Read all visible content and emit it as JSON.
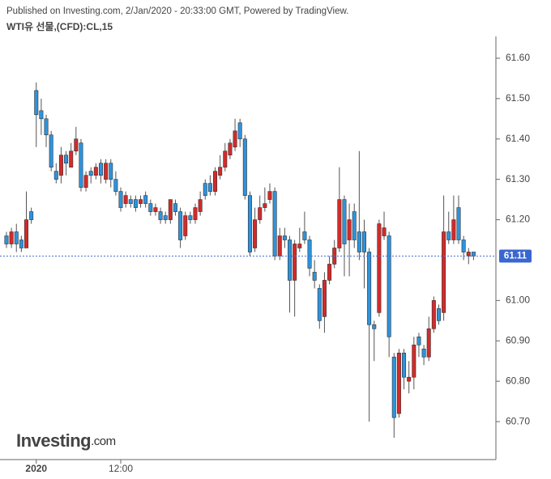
{
  "chart_data": {
    "type": "candlestick",
    "header": "Published on Investing.com, 2/Jan/2020 - 20:33:00 GMT, Powered by TradingView.",
    "title": "WTI유 선물,(CFD):CL,15",
    "logo": {
      "name": "Investing",
      "suffix": ".com"
    },
    "up_color": "#d42a2a",
    "down_color": "#2e93dc",
    "open": [
      61.16,
      61.14,
      61.17,
      61.15,
      61.13,
      61.22,
      61.52,
      61.47,
      61.45,
      61.41,
      61.32,
      61.31,
      61.36,
      61.33,
      61.37,
      61.39,
      61.28,
      61.32,
      61.31,
      61.34,
      61.3,
      61.34,
      61.3,
      61.27,
      61.24,
      61.25,
      61.25,
      61.24,
      61.26,
      61.24,
      61.22,
      61.22,
      61.21,
      61.2,
      61.24,
      61.22,
      61.16,
      61.21,
      61.2,
      61.22,
      61.29,
      61.29,
      61.27,
      61.31,
      61.33,
      61.36,
      61.38,
      61.44,
      61.4,
      61.26,
      61.13,
      61.2,
      61.23,
      61.25,
      61.27,
      61.11,
      61.16,
      61.15,
      61.05,
      61.13,
      61.17,
      61.15,
      61.07,
      61.03,
      60.96,
      61.05,
      61.09,
      61.13,
      61.25,
      61.15,
      61.22,
      61.17,
      61.17,
      61.12,
      60.94,
      60.97,
      61.16,
      61.16,
      60.86,
      60.72,
      60.87,
      60.8,
      60.81,
      60.91,
      60.88,
      60.86,
      60.93,
      60.98,
      60.97,
      61.17,
      61.15,
      61.23,
      61.15,
      61.11,
      61.12
    ],
    "high": [
      61.17,
      61.18,
      61.19,
      61.16,
      61.27,
      61.23,
      61.54,
      61.5,
      61.46,
      61.42,
      61.34,
      61.38,
      61.37,
      61.39,
      61.43,
      61.4,
      61.32,
      61.33,
      61.34,
      61.35,
      61.35,
      61.35,
      61.32,
      61.28,
      61.27,
      61.26,
      61.26,
      61.26,
      61.27,
      61.25,
      61.24,
      61.23,
      61.22,
      61.25,
      61.25,
      61.23,
      61.22,
      61.22,
      61.24,
      61.27,
      61.3,
      61.31,
      61.33,
      61.36,
      61.39,
      61.4,
      61.45,
      61.45,
      61.41,
      61.27,
      61.23,
      61.26,
      61.28,
      61.29,
      61.28,
      61.18,
      61.18,
      61.16,
      61.15,
      61.18,
      61.22,
      61.16,
      61.1,
      61.04,
      61.07,
      61.11,
      61.15,
      61.33,
      61.26,
      61.24,
      61.24,
      61.37,
      61.2,
      61.13,
      60.95,
      61.2,
      61.22,
      61.17,
      60.87,
      60.88,
      60.88,
      60.85,
      60.91,
      60.92,
      60.89,
      60.96,
      61.01,
      60.99,
      61.26,
      61.22,
      61.26,
      61.26,
      61.16,
      61.13,
      61.12
    ],
    "low": [
      61.13,
      61.13,
      61.12,
      61.12,
      61.13,
      61.19,
      61.38,
      61.41,
      61.38,
      61.32,
      61.29,
      61.29,
      61.31,
      61.33,
      61.36,
      61.27,
      61.27,
      61.29,
      61.3,
      61.29,
      61.29,
      61.28,
      61.26,
      61.22,
      61.23,
      61.23,
      61.22,
      61.23,
      61.23,
      61.21,
      61.21,
      61.19,
      61.19,
      61.19,
      61.21,
      61.13,
      61.15,
      61.19,
      61.19,
      61.21,
      61.25,
      61.26,
      61.26,
      61.3,
      61.32,
      61.35,
      61.37,
      61.38,
      61.25,
      61.11,
      61.12,
      61.19,
      61.22,
      61.24,
      61.1,
      61.1,
      61.13,
      60.97,
      60.96,
      61.12,
      61.14,
      61.06,
      61.03,
      60.93,
      60.92,
      61.04,
      61.08,
      61.12,
      61.06,
      61.06,
      61.13,
      61.1,
      61.03,
      60.7,
      60.85,
      60.96,
      61.15,
      60.86,
      60.66,
      60.71,
      60.78,
      60.77,
      60.78,
      60.86,
      60.84,
      60.85,
      60.92,
      60.94,
      60.95,
      61.14,
      61.14,
      61.14,
      61.1,
      61.09,
      61.1
    ],
    "close": [
      61.14,
      61.17,
      61.14,
      61.13,
      61.2,
      61.2,
      61.46,
      61.45,
      61.41,
      61.33,
      61.3,
      61.36,
      61.34,
      61.37,
      61.4,
      61.28,
      61.31,
      61.31,
      61.33,
      61.31,
      61.34,
      61.3,
      61.27,
      61.23,
      61.26,
      61.24,
      61.23,
      61.25,
      61.24,
      61.22,
      61.23,
      61.2,
      61.2,
      61.25,
      61.22,
      61.15,
      61.21,
      61.2,
      61.23,
      61.25,
      61.26,
      61.27,
      61.32,
      61.33,
      61.37,
      61.39,
      61.42,
      61.4,
      61.26,
      61.12,
      61.2,
      61.23,
      61.24,
      61.27,
      61.11,
      61.16,
      61.15,
      61.05,
      61.14,
      61.14,
      61.15,
      61.08,
      61.05,
      60.95,
      61.05,
      61.09,
      61.13,
      61.25,
      61.14,
      61.2,
      61.15,
      61.12,
      61.12,
      60.94,
      60.93,
      61.19,
      61.18,
      60.91,
      60.71,
      60.87,
      60.81,
      60.81,
      60.89,
      60.89,
      60.86,
      60.93,
      61.0,
      60.95,
      61.17,
      61.15,
      61.2,
      61.15,
      61.12,
      61.12,
      61.11
    ],
    "last_price": 61.11,
    "xlim": [
      -1.3,
      98.5
    ],
    "xticks": [
      {
        "value": 6,
        "label": "2020"
      },
      {
        "value": 23,
        "label": "12:00"
      }
    ],
    "ylim": [
      60.606,
      61.654
    ],
    "yticks": [
      {
        "value": 60.7,
        "label": "60.70"
      },
      {
        "value": 60.8,
        "label": "60.80"
      },
      {
        "value": 60.9,
        "label": "60.90"
      },
      {
        "value": 61.0,
        "label": "61.00"
      },
      {
        "value": 61.2,
        "label": "61.20"
      },
      {
        "value": 61.3,
        "label": "61.30"
      },
      {
        "value": 61.4,
        "label": "61.40"
      },
      {
        "value": 61.5,
        "label": "61.50"
      },
      {
        "value": 61.6,
        "label": "61.60"
      }
    ]
  }
}
